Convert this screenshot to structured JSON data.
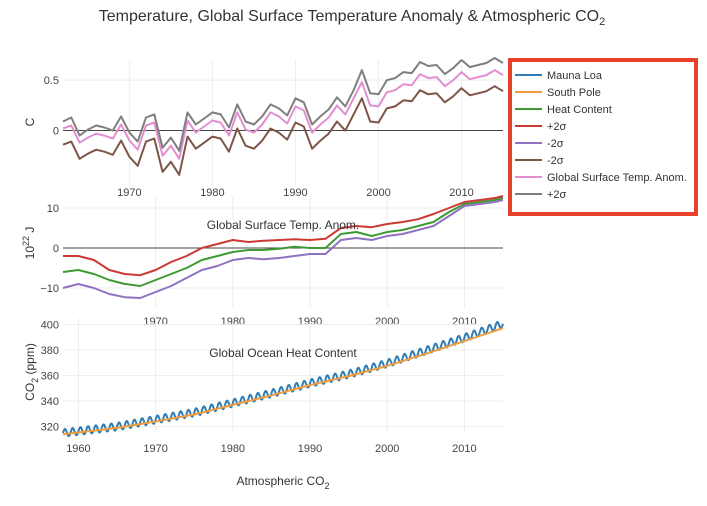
{
  "colors": {
    "blue": "#2e7db6",
    "orange": "#f39c3c",
    "green": "#3f9a34",
    "red": "#cc3a33",
    "purple": "#9072c2",
    "brown": "#7d5548",
    "pink": "#e28ed0",
    "gray": "#7f7f7f",
    "legend_border": "#e8412c"
  },
  "chart_data": [
    {
      "type": "line",
      "panel": "top",
      "title": "Temperature, Global Surface Temperature Anomaly & Atmospheric CO",
      "title_subscript": "2",
      "subplot_title": "Global Surface Temp. Anom.",
      "ylabel": "C",
      "xlim": [
        1962,
        2015
      ],
      "ylim": [
        -0.55,
        0.7
      ],
      "x_ticks": [
        1970,
        1980,
        1990,
        2000,
        2010
      ],
      "y_ticks": [
        0,
        0.5
      ],
      "y_tick_labels": [
        "0",
        "0.5"
      ],
      "x": [
        1962,
        1963,
        1964,
        1965,
        1966,
        1967,
        1968,
        1969,
        1970,
        1971,
        1972,
        1973,
        1974,
        1975,
        1976,
        1977,
        1978,
        1979,
        1980,
        1981,
        1982,
        1983,
        1984,
        1985,
        1986,
        1987,
        1988,
        1989,
        1990,
        1991,
        1992,
        1993,
        1994,
        1995,
        1996,
        1997,
        1998,
        1999,
        2000,
        2001,
        2002,
        2003,
        2004,
        2005,
        2006,
        2007,
        2008,
        2009,
        2010,
        2011,
        2012,
        2013,
        2014,
        2015
      ],
      "series": [
        {
          "name": "Global Surface Temp. Anom.",
          "color": "pink",
          "values": [
            0.02,
            0.05,
            -0.12,
            -0.07,
            -0.03,
            -0.05,
            -0.08,
            0.06,
            -0.1,
            -0.19,
            0.05,
            0.08,
            -0.25,
            -0.15,
            -0.28,
            0.1,
            -0.02,
            0.04,
            0.1,
            0.08,
            -0.05,
            0.18,
            0.01,
            -0.02,
            0.06,
            0.18,
            0.14,
            0.07,
            0.24,
            0.2,
            -0.02,
            0.06,
            0.13,
            0.25,
            0.16,
            0.32,
            0.48,
            0.25,
            0.24,
            0.38,
            0.4,
            0.46,
            0.45,
            0.56,
            0.52,
            0.53,
            0.44,
            0.5,
            0.58,
            0.51,
            0.53,
            0.55,
            0.6,
            0.55
          ]
        },
        {
          "name": "+2σ",
          "color": "gray",
          "values": [
            0.09,
            0.13,
            -0.05,
            0.01,
            0.05,
            0.03,
            0,
            0.14,
            -0.02,
            -0.11,
            0.13,
            0.16,
            -0.17,
            -0.07,
            -0.2,
            0.18,
            0.06,
            0.12,
            0.18,
            0.16,
            0.03,
            0.26,
            0.09,
            0.06,
            0.14,
            0.26,
            0.22,
            0.15,
            0.32,
            0.28,
            0.06,
            0.14,
            0.21,
            0.33,
            0.24,
            0.4,
            0.6,
            0.37,
            0.36,
            0.5,
            0.52,
            0.58,
            0.57,
            0.68,
            0.64,
            0.65,
            0.56,
            0.62,
            0.7,
            0.63,
            0.65,
            0.67,
            0.72,
            0.67
          ]
        },
        {
          "name": "-2σ",
          "color": "brown",
          "values": [
            -0.14,
            -0.11,
            -0.28,
            -0.23,
            -0.19,
            -0.21,
            -0.24,
            -0.1,
            -0.26,
            -0.35,
            -0.11,
            -0.08,
            -0.41,
            -0.31,
            -0.44,
            -0.06,
            -0.18,
            -0.12,
            -0.06,
            -0.08,
            -0.21,
            0.02,
            -0.15,
            -0.18,
            -0.1,
            0.02,
            -0.02,
            -0.09,
            0.08,
            0.04,
            -0.18,
            -0.1,
            -0.03,
            0.09,
            0,
            0.16,
            0.32,
            0.09,
            0.08,
            0.22,
            0.24,
            0.3,
            0.29,
            0.4,
            0.36,
            0.37,
            0.28,
            0.34,
            0.42,
            0.35,
            0.37,
            0.39,
            0.44,
            0.39
          ]
        }
      ]
    },
    {
      "type": "line",
      "panel": "middle",
      "subplot_title": "Global Ocean Heat Content",
      "ylabel": "10",
      "ylabel_superscript": "22",
      "ylabel_unit": "J",
      "xlim": [
        1958,
        2015
      ],
      "ylim": [
        -15,
        13
      ],
      "x_ticks": [
        1970,
        1980,
        1990,
        2000,
        2010
      ],
      "y_ticks": [
        -10,
        0,
        10
      ],
      "y_tick_labels": [
        "−10",
        "0",
        "10"
      ],
      "x": [
        1958,
        1960,
        1962,
        1964,
        1966,
        1968,
        1970,
        1972,
        1974,
        1976,
        1978,
        1980,
        1982,
        1984,
        1986,
        1988,
        1990,
        1992,
        1994,
        1996,
        1998,
        2000,
        2002,
        2004,
        2006,
        2008,
        2010,
        2012,
        2014,
        2015
      ],
      "series": [
        {
          "name": "Heat Content",
          "color": "green",
          "values": [
            -6,
            -5.5,
            -6.5,
            -8,
            -9,
            -9.5,
            -8,
            -6.5,
            -5,
            -3,
            -2,
            -1,
            -0.5,
            -0.5,
            -0.2,
            0.3,
            0,
            0,
            3.5,
            4,
            3,
            4,
            4.5,
            5.5,
            6.5,
            9,
            11,
            11.5,
            12,
            12.5
          ]
        },
        {
          "name": "+2σ",
          "color": "red",
          "values": [
            -2,
            -2,
            -3,
            -5.5,
            -6.5,
            -6.8,
            -5.5,
            -3.5,
            -2,
            0,
            1,
            2,
            1.5,
            1.8,
            2,
            2.2,
            2,
            2.3,
            5,
            5.5,
            5.2,
            6,
            6.5,
            7.2,
            8.5,
            10,
            11.5,
            12,
            12.5,
            13
          ]
        },
        {
          "name": "-2σ",
          "color": "purple",
          "values": [
            -10,
            -9,
            -10,
            -11.5,
            -12.3,
            -12.5,
            -11,
            -9.5,
            -7.5,
            -5.5,
            -4.5,
            -3,
            -2.5,
            -2.8,
            -2.5,
            -2,
            -1.5,
            -1.5,
            2,
            2.5,
            2,
            3,
            3.5,
            4.5,
            5.5,
            8,
            10.5,
            11,
            11.5,
            12
          ]
        }
      ]
    },
    {
      "type": "line",
      "panel": "bottom",
      "xlabel": "Atmospheric CO",
      "xlabel_subscript": "2",
      "ylabel": "CO",
      "ylabel_subscript": "2",
      "ylabel_unit": "(ppm)",
      "xlim": [
        1958,
        2015
      ],
      "ylim": [
        315,
        405
      ],
      "x_ticks": [
        1960,
        1970,
        1980,
        1990,
        2000,
        2010
      ],
      "y_ticks": [
        320,
        340,
        360,
        380,
        400
      ],
      "y_tick_labels": [
        "320",
        "340",
        "360",
        "380",
        "400"
      ],
      "series": [
        {
          "name": "Mauna Loa",
          "color": "blue",
          "trend": [
            [
              1958,
              315
            ],
            [
              1965,
              320
            ],
            [
              1970,
              325.5
            ],
            [
              1975,
              331
            ],
            [
              1980,
              338.5
            ],
            [
              1985,
              346
            ],
            [
              1990,
              354
            ],
            [
              1995,
              361
            ],
            [
              2000,
              369.5
            ],
            [
              2005,
              379.5
            ],
            [
              2010,
              389.5
            ],
            [
              2015,
              400.5
            ]
          ],
          "seasonal_amplitude_ppm": 3
        },
        {
          "name": "South Pole",
          "color": "orange",
          "trend": [
            [
              1958,
              314
            ],
            [
              1965,
              319
            ],
            [
              1970,
              324
            ],
            [
              1975,
              329.5
            ],
            [
              1980,
              337
            ],
            [
              1985,
              344.5
            ],
            [
              1990,
              352.5
            ],
            [
              1995,
              359.5
            ],
            [
              2000,
              367.5
            ],
            [
              2005,
              377
            ],
            [
              2010,
              387
            ],
            [
              2015,
              397
            ]
          ]
        }
      ]
    }
  ],
  "legend": {
    "items": [
      {
        "label": "Mauna Loa",
        "color": "blue"
      },
      {
        "label": "South Pole",
        "color": "orange"
      },
      {
        "label": "Heat Content",
        "color": "green"
      },
      {
        "label": "+2σ",
        "color": "red"
      },
      {
        "label": "-2σ",
        "color": "purple"
      },
      {
        "label": "-2σ",
        "color": "brown"
      },
      {
        "label": "Global Surface Temp. Anom.",
        "color": "pink"
      },
      {
        "label": "+2σ",
        "color": "gray"
      }
    ]
  }
}
